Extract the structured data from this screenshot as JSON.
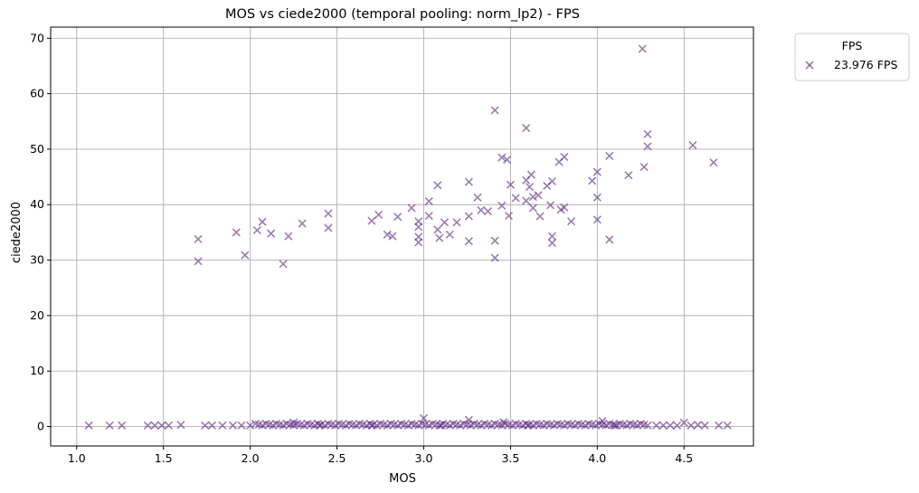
{
  "chart_data": {
    "type": "scatter",
    "title": "MOS vs ciede2000 (temporal pooling: norm_lp2) - FPS",
    "xlabel": "MOS",
    "ylabel": "ciede2000",
    "xlim": [
      0.85,
      4.9
    ],
    "ylim": [
      -3.5,
      72
    ],
    "xticks": [
      "1.0",
      "1.5",
      "2.0",
      "2.5",
      "3.0",
      "3.5",
      "4.0",
      "4.5"
    ],
    "yticks": [
      "0",
      "10",
      "20",
      "30",
      "40",
      "50",
      "60",
      "70"
    ],
    "grid": true,
    "legend": {
      "title": "FPS",
      "placement": "outside-top-right",
      "entries": [
        "23.976 FPS"
      ]
    },
    "marker": "x",
    "color": "#5b2580",
    "series": [
      {
        "name": "23.976 FPS",
        "points": [
          [
            1.7,
            33.8
          ],
          [
            1.7,
            29.8
          ],
          [
            1.92,
            35.0
          ],
          [
            1.97,
            30.9
          ],
          [
            2.04,
            35.4
          ],
          [
            2.07,
            36.9
          ],
          [
            2.12,
            34.8
          ],
          [
            2.19,
            29.3
          ],
          [
            2.22,
            34.3
          ],
          [
            2.3,
            36.6
          ],
          [
            2.45,
            38.4
          ],
          [
            2.45,
            35.8
          ],
          [
            2.7,
            37.1
          ],
          [
            2.74,
            38.2
          ],
          [
            2.79,
            34.6
          ],
          [
            2.82,
            34.3
          ],
          [
            2.85,
            37.8
          ],
          [
            2.93,
            39.4
          ],
          [
            2.97,
            37.0
          ],
          [
            2.97,
            36.0
          ],
          [
            2.97,
            34.2
          ],
          [
            2.97,
            33.2
          ],
          [
            3.03,
            40.6
          ],
          [
            3.03,
            38.0
          ],
          [
            3.08,
            43.5
          ],
          [
            3.08,
            35.5
          ],
          [
            3.09,
            34.0
          ],
          [
            3.12,
            36.8
          ],
          [
            3.15,
            34.6
          ],
          [
            3.19,
            36.8
          ],
          [
            3.26,
            44.1
          ],
          [
            3.26,
            37.9
          ],
          [
            3.26,
            33.4
          ],
          [
            3.31,
            41.3
          ],
          [
            3.33,
            39.0
          ],
          [
            3.37,
            38.8
          ],
          [
            3.41,
            57.0
          ],
          [
            3.41,
            33.5
          ],
          [
            3.41,
            30.4
          ],
          [
            3.45,
            48.5
          ],
          [
            3.45,
            39.8
          ],
          [
            3.48,
            48.1
          ],
          [
            3.49,
            38.0
          ],
          [
            3.5,
            43.6
          ],
          [
            3.53,
            41.2
          ],
          [
            3.59,
            53.8
          ],
          [
            3.59,
            44.4
          ],
          [
            3.59,
            40.7
          ],
          [
            3.61,
            43.2
          ],
          [
            3.62,
            45.4
          ],
          [
            3.63,
            41.4
          ],
          [
            3.63,
            39.4
          ],
          [
            3.66,
            41.7
          ],
          [
            3.67,
            37.9
          ],
          [
            3.71,
            43.4
          ],
          [
            3.74,
            44.2
          ],
          [
            3.73,
            39.9
          ],
          [
            3.74,
            34.3
          ],
          [
            3.74,
            33.1
          ],
          [
            3.78,
            47.7
          ],
          [
            3.79,
            39.1
          ],
          [
            3.81,
            48.6
          ],
          [
            3.81,
            39.5
          ],
          [
            3.85,
            37.0
          ],
          [
            3.97,
            44.3
          ],
          [
            4.0,
            45.9
          ],
          [
            4.0,
            41.3
          ],
          [
            4.0,
            37.3
          ],
          [
            4.07,
            48.8
          ],
          [
            4.07,
            33.7
          ],
          [
            4.18,
            45.3
          ],
          [
            4.26,
            68.1
          ],
          [
            4.27,
            46.8
          ],
          [
            4.29,
            52.7
          ],
          [
            4.29,
            50.5
          ],
          [
            4.55,
            50.7
          ],
          [
            4.67,
            47.6
          ],
          [
            3.0,
            1.5
          ],
          [
            3.26,
            1.2
          ],
          [
            4.03,
            1.0
          ],
          [
            3.46,
            0.8
          ],
          [
            2.25,
            0.7
          ],
          [
            4.5,
            0.7
          ],
          [
            1.07,
            0.2
          ],
          [
            1.19,
            0.2
          ],
          [
            1.26,
            0.2
          ],
          [
            1.41,
            0.2
          ],
          [
            1.45,
            0.2
          ],
          [
            1.49,
            0.2
          ],
          [
            1.53,
            0.2
          ],
          [
            1.6,
            0.3
          ],
          [
            1.74,
            0.2
          ],
          [
            1.78,
            0.2
          ],
          [
            1.84,
            0.2
          ],
          [
            1.9,
            0.2
          ],
          [
            1.95,
            0.2
          ],
          [
            2.0,
            0.2
          ],
          [
            2.4,
            0.2
          ],
          [
            2.7,
            0.2
          ],
          [
            3.1,
            0.2
          ],
          [
            3.6,
            0.2
          ],
          [
            4.1,
            0.2
          ],
          [
            4.34,
            0.2
          ],
          [
            4.38,
            0.2
          ],
          [
            4.42,
            0.2
          ],
          [
            4.46,
            0.2
          ],
          [
            4.54,
            0.2
          ],
          [
            4.58,
            0.3
          ],
          [
            4.62,
            0.2
          ],
          [
            4.7,
            0.2
          ],
          [
            4.75,
            0.2
          ]
        ],
        "dense_band": {
          "from": 2.03,
          "to": 4.3,
          "y": 0.2,
          "step": 0.02
        }
      }
    ]
  }
}
